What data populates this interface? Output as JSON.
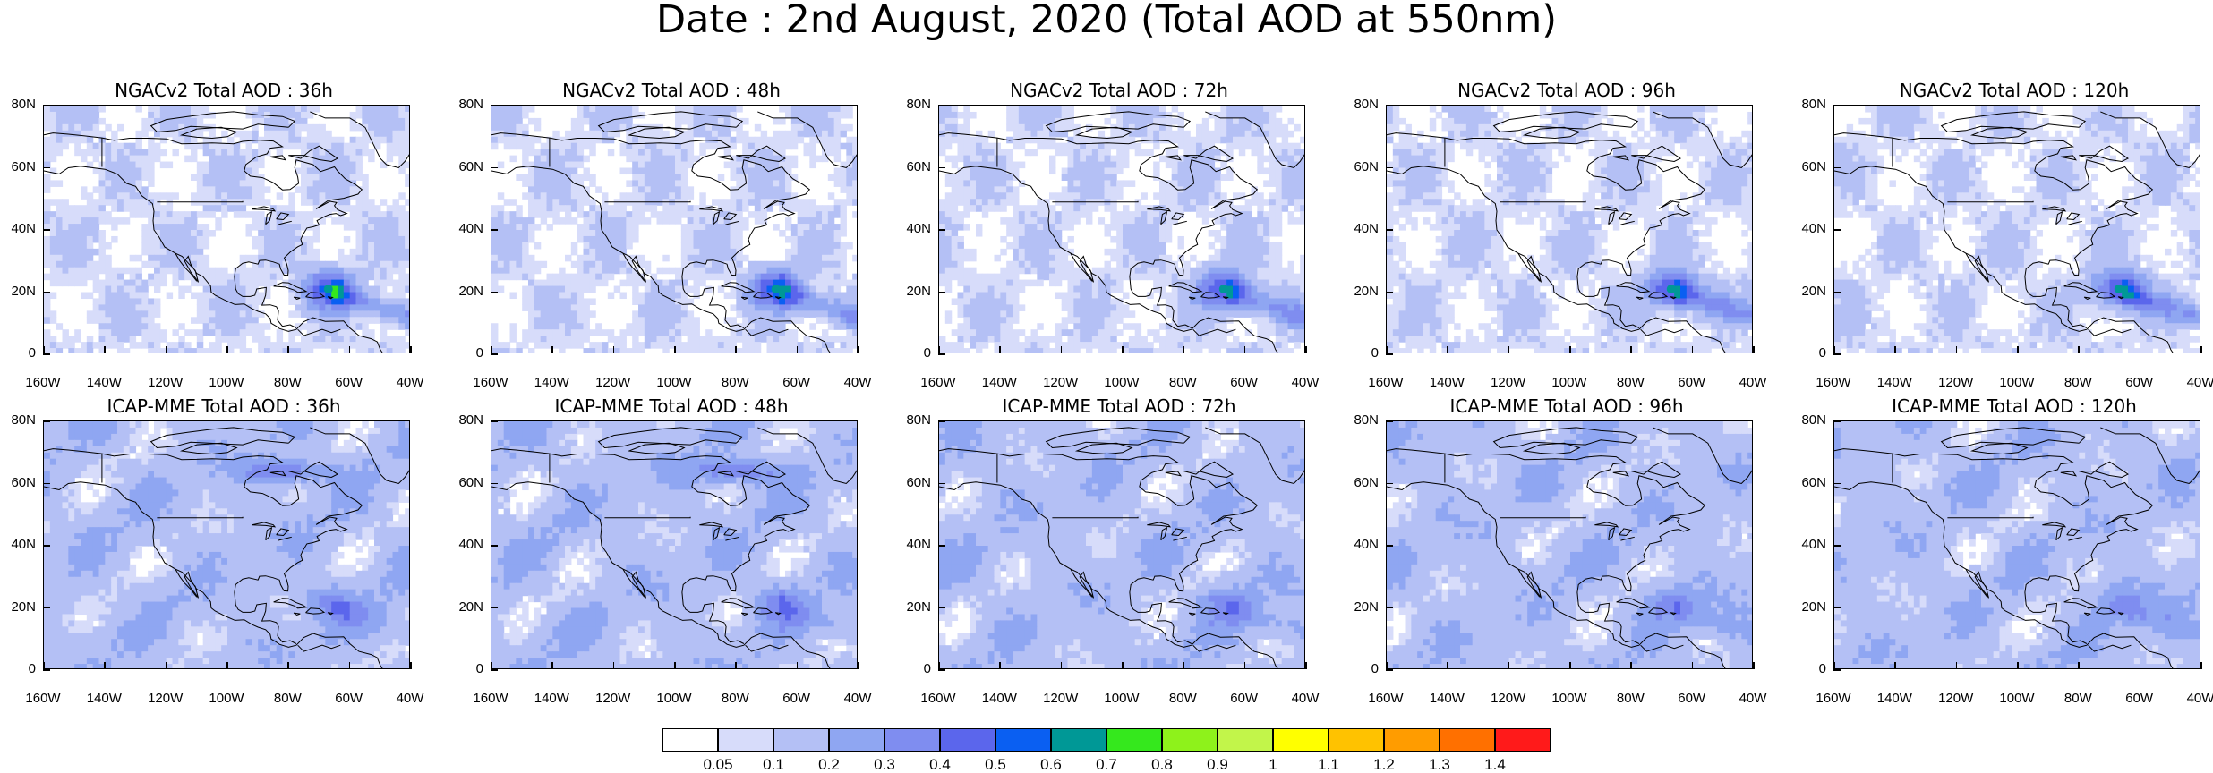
{
  "title": "Date : 2nd August, 2020 (Total AOD at 550nm)",
  "lon_ticks": [
    "160W",
    "140W",
    "120W",
    "100W",
    "80W",
    "60W",
    "40W"
  ],
  "lat_ticks": [
    "80N",
    "60N",
    "40N",
    "20N",
    "0"
  ],
  "panels": [
    {
      "model": "NGACv2",
      "title": "NGACv2 Total AOD : 36h",
      "lead_hours": 36
    },
    {
      "model": "NGACv2",
      "title": "NGACv2 Total AOD : 48h",
      "lead_hours": 48
    },
    {
      "model": "NGACv2",
      "title": "NGACv2 Total AOD : 72h",
      "lead_hours": 72
    },
    {
      "model": "NGACv2",
      "title": "NGACv2 Total AOD : 96h",
      "lead_hours": 96
    },
    {
      "model": "NGACv2",
      "title": "NGACv2 Total AOD : 120h",
      "lead_hours": 120
    },
    {
      "model": "ICAP-MME",
      "title": "ICAP-MME Total AOD : 36h",
      "lead_hours": 36
    },
    {
      "model": "ICAP-MME",
      "title": "ICAP-MME Total AOD : 48h",
      "lead_hours": 48
    },
    {
      "model": "ICAP-MME",
      "title": "ICAP-MME Total AOD : 72h",
      "lead_hours": 72
    },
    {
      "model": "ICAP-MME",
      "title": "ICAP-MME Total AOD : 96h",
      "lead_hours": 96
    },
    {
      "model": "ICAP-MME",
      "title": "ICAP-MME Total AOD : 120h",
      "lead_hours": 120
    }
  ],
  "colorbar": {
    "labels": [
      "0.05",
      "0.1",
      "0.2",
      "0.3",
      "0.4",
      "0.5",
      "0.6",
      "0.7",
      "0.8",
      "0.9",
      "1",
      "1.1",
      "1.2",
      "1.3",
      "1.4"
    ],
    "colors": [
      "#ffffff",
      "#d7dcfa",
      "#b4c0f5",
      "#8fa6f2",
      "#7f8df0",
      "#5b66ec",
      "#0a5ff2",
      "#009896",
      "#35e81d",
      "#8ef21b",
      "#c2f54a",
      "#ffff00",
      "#ffc200",
      "#ff9c00",
      "#ff7000",
      "#ff1a1a"
    ]
  },
  "lon_range": [
    "160W",
    "40W"
  ],
  "lat_range": [
    "0",
    "80N"
  ]
}
